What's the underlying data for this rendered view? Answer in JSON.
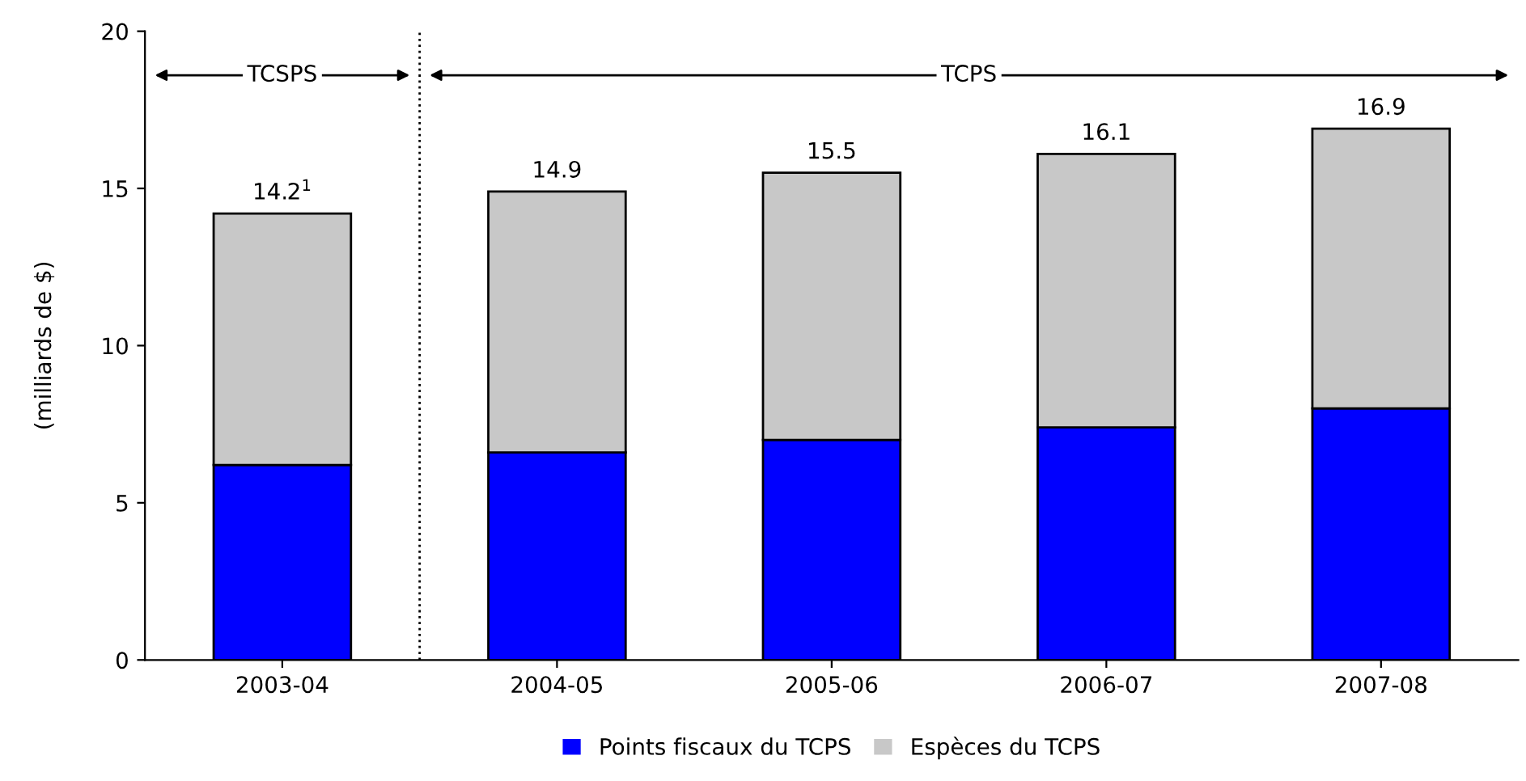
{
  "chart_data": {
    "type": "bar",
    "stacked": true,
    "ylabel": "(milliards de $)",
    "categories": [
      "2003-04",
      "2004-05",
      "2005-06",
      "2006-07",
      "2007-08"
    ],
    "series": [
      {
        "name": "Points fiscaux du TCPS",
        "color": "#0000ff",
        "values": [
          6.2,
          6.6,
          7.0,
          7.4,
          8.0
        ]
      },
      {
        "name": "Espèces du TCPS",
        "color": "#c8c8c8",
        "values": [
          8.0,
          8.3,
          8.5,
          8.7,
          8.9
        ]
      }
    ],
    "totals": [
      "14.2$^{1}$",
      "14.9",
      "15.5",
      "16.1",
      "16.9"
    ],
    "ylim": [
      0,
      20
    ],
    "yticks": [
      0,
      5,
      10,
      15,
      20
    ],
    "grid": false,
    "legend": "bottom",
    "annotations": [
      "TCSPS",
      "TCPS"
    ]
  }
}
